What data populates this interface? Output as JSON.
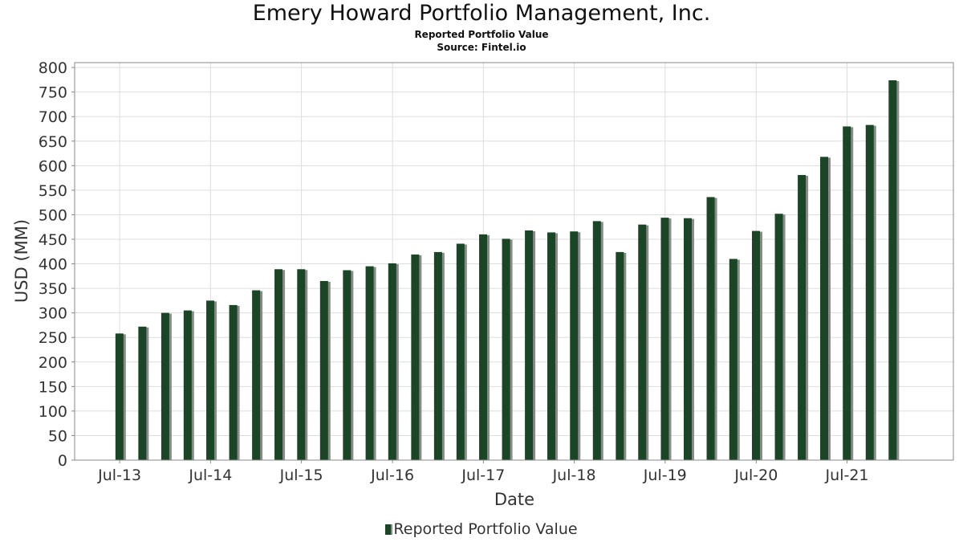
{
  "chart_data": {
    "type": "bar",
    "title": "Emery Howard Portfolio Management, Inc.",
    "subtitle": "Reported Portfolio Value",
    "source": "Source: Fintel.io",
    "xlabel": "Date",
    "ylabel": "USD (MM)",
    "ylim": [
      0,
      810
    ],
    "yticks": [
      0,
      50,
      100,
      150,
      200,
      250,
      300,
      350,
      400,
      450,
      500,
      550,
      600,
      650,
      700,
      750,
      800
    ],
    "xtick_labels": [
      "Jul-13",
      "Jul-14",
      "Jul-15",
      "Jul-16",
      "Jul-17",
      "Jul-18",
      "Jul-19",
      "Jul-20",
      "Jul-21"
    ],
    "grid": true,
    "legend_position": "bottom-center",
    "bar_color": "#1a4625",
    "shadow_color": "#8a8a8a",
    "series": [
      {
        "name": "Reported Portfolio Value",
        "x": [
          "2013-06-30",
          "2013-09-30",
          "2013-12-31",
          "2014-03-31",
          "2014-06-30",
          "2014-09-30",
          "2014-12-31",
          "2015-03-31",
          "2015-06-30",
          "2015-09-30",
          "2015-12-31",
          "2016-03-31",
          "2016-06-30",
          "2016-09-30",
          "2016-12-31",
          "2017-03-31",
          "2017-06-30",
          "2017-09-30",
          "2017-12-31",
          "2018-03-31",
          "2018-06-30",
          "2018-09-30",
          "2018-12-31",
          "2019-03-31",
          "2019-06-30",
          "2019-09-30",
          "2019-12-31",
          "2020-03-31",
          "2020-06-30",
          "2020-09-30",
          "2020-12-31",
          "2021-03-31",
          "2021-06-30",
          "2021-09-30",
          "2021-12-31"
        ],
        "values": [
          258,
          272,
          300,
          305,
          325,
          316,
          346,
          389,
          389,
          365,
          387,
          395,
          401,
          419,
          424,
          441,
          460,
          451,
          468,
          464,
          466,
          487,
          424,
          480,
          494,
          493,
          536,
          410,
          467,
          502,
          581,
          618,
          680,
          683,
          774
        ]
      }
    ]
  }
}
